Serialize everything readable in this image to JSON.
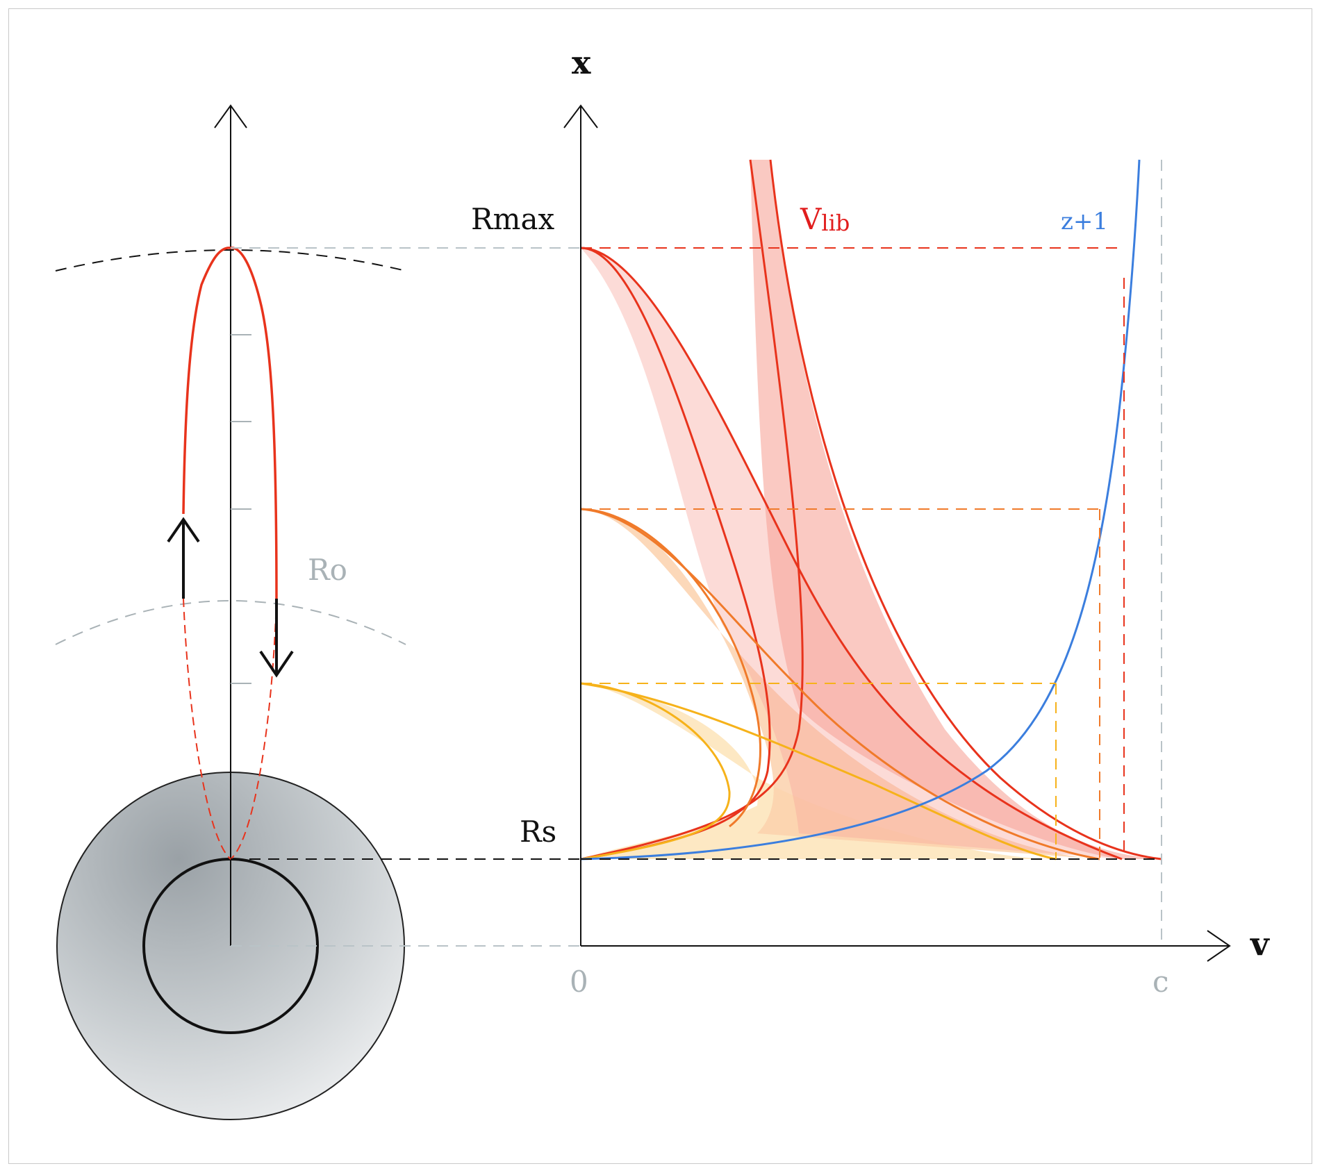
{
  "labels": {
    "x_axis": "x",
    "v_axis": "v",
    "r_max": "Rmax",
    "r_s": "Rs",
    "r_o": "Ro",
    "v_lib_main": "V",
    "v_lib_sub": "lib",
    "z_plus_one": "z+1",
    "origin": "0",
    "c": "c"
  },
  "colors": {
    "red": "#e8331c",
    "red_band": "#f7a59a",
    "orange": "#f07a2a",
    "orange_band": "#fbd1ad",
    "yellow": "#f6b21a",
    "yellow_band": "#fde6bd",
    "blue": "#3b7ede",
    "grey": "#a9b2b6",
    "black": "#111111"
  },
  "icons": {
    "up_arrow": "up-arrow-icon",
    "down_arrow": "down-arrow-icon"
  }
}
